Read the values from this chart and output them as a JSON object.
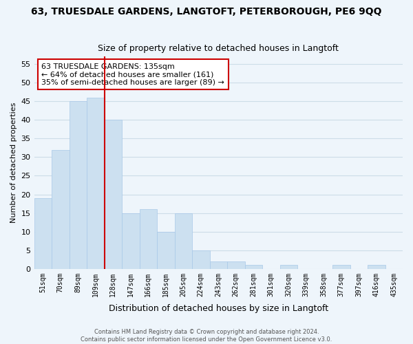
{
  "title": "63, TRUESDALE GARDENS, LANGTOFT, PETERBOROUGH, PE6 9QQ",
  "subtitle": "Size of property relative to detached houses in Langtoft",
  "xlabel": "Distribution of detached houses by size in Langtoft",
  "ylabel": "Number of detached properties",
  "bar_color": "#cce0f0",
  "bar_edge_color": "#a8c8e8",
  "highlight_line_color": "#cc0000",
  "highlight_line_index": 4,
  "bin_labels": [
    "51sqm",
    "70sqm",
    "89sqm",
    "109sqm",
    "128sqm",
    "147sqm",
    "166sqm",
    "185sqm",
    "205sqm",
    "224sqm",
    "243sqm",
    "262sqm",
    "281sqm",
    "301sqm",
    "320sqm",
    "339sqm",
    "358sqm",
    "377sqm",
    "397sqm",
    "416sqm",
    "435sqm"
  ],
  "bar_heights": [
    19,
    32,
    45,
    46,
    40,
    15,
    16,
    10,
    15,
    5,
    2,
    2,
    1,
    0,
    1,
    0,
    0,
    1,
    0,
    1,
    0
  ],
  "ylim": [
    0,
    57
  ],
  "yticks": [
    0,
    5,
    10,
    15,
    20,
    25,
    30,
    35,
    40,
    45,
    50,
    55
  ],
  "annotation_title": "63 TRUESDALE GARDENS: 135sqm",
  "annotation_line1": "← 64% of detached houses are smaller (161)",
  "annotation_line2": "35% of semi-detached houses are larger (89) →",
  "annotation_box_color": "#ffffff",
  "annotation_box_edge": "#cc0000",
  "footer_line1": "Contains HM Land Registry data © Crown copyright and database right 2024.",
  "footer_line2": "Contains public sector information licensed under the Open Government Licence v3.0.",
  "grid_color": "#ccdde8",
  "background_color": "#eef5fb"
}
